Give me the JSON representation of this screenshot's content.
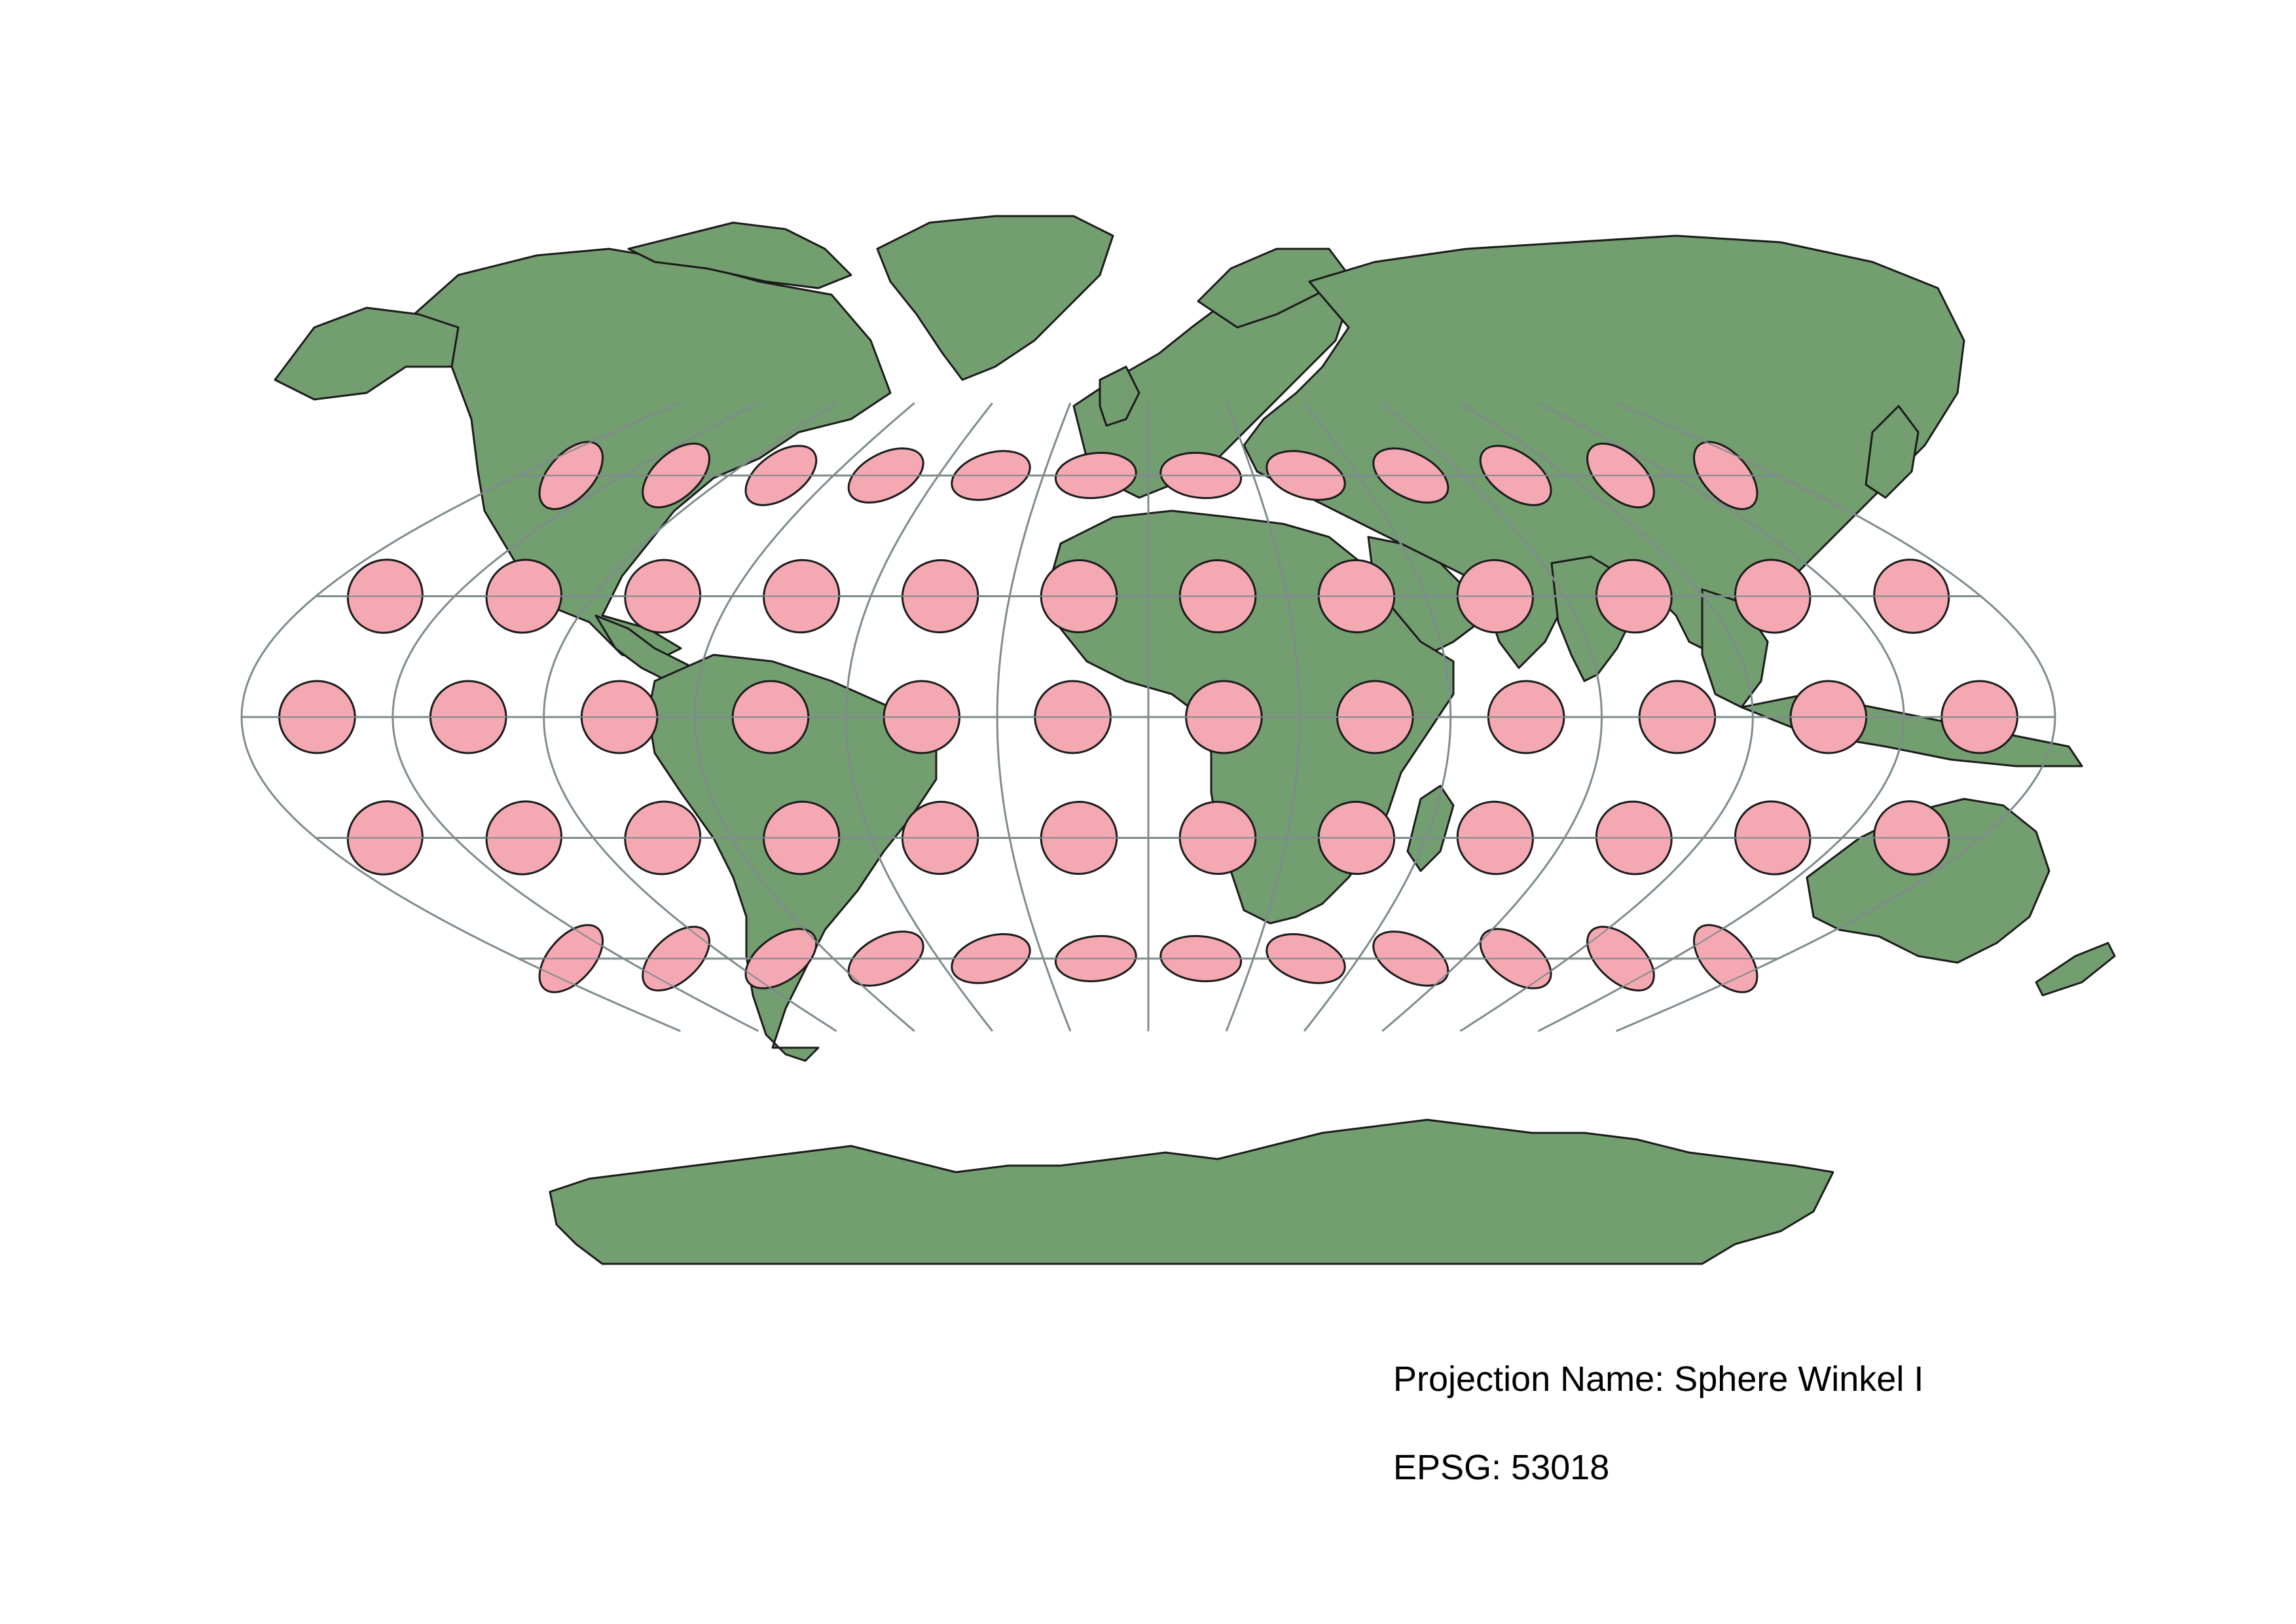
{
  "map": {
    "projection_label": "Projection Name: Sphere Winkel I",
    "epsg_label": "EPSG: 53018",
    "graticule": {
      "longitudes": [
        -150,
        -120,
        -90,
        -60,
        -30,
        0,
        30,
        60,
        90,
        120,
        150,
        180
      ],
      "latitudes": [
        -60,
        -30,
        0,
        30,
        60
      ]
    },
    "tissot_indicatrix": {
      "shown": true,
      "longitudes": [
        -165,
        -135,
        -105,
        -75,
        -45,
        -15,
        15,
        45,
        75,
        105,
        135,
        165
      ],
      "latitudes": [
        60,
        30,
        0,
        -30,
        -60
      ]
    },
    "colors": {
      "land": "#739e6f",
      "land_outline": "#1b1b1b",
      "ellipse_fill": "#f3a8b2",
      "ellipse_outline": "#1b1b1b",
      "graticule": "#7f8c8c",
      "background": "#ffffff"
    }
  }
}
